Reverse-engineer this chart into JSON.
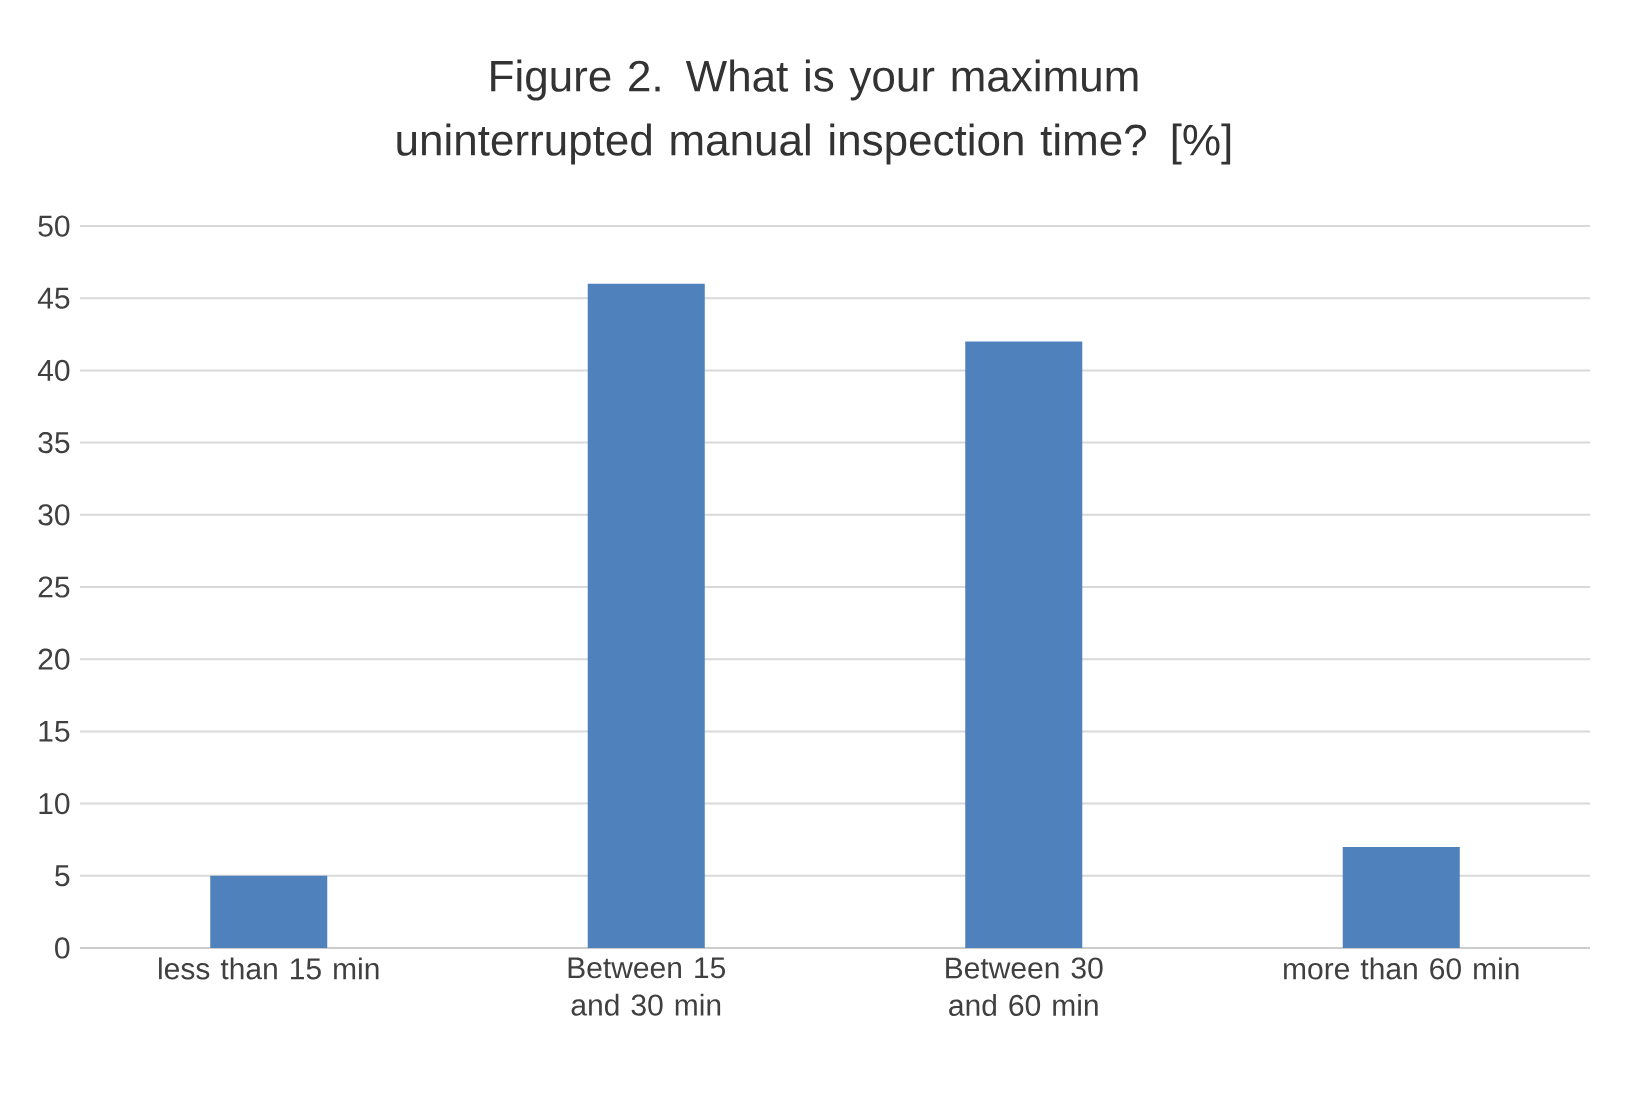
{
  "chart_data": {
    "type": "bar",
    "title": "Figure 2. What is your maximum uninterrupted manual inspection time? [%]",
    "categories": [
      "less than 15 min",
      "Between 15 and 30 min",
      "Between 30 and 60 min",
      "more than 60 min"
    ],
    "values": [
      5,
      46,
      42,
      7
    ],
    "color": "#4f81bd",
    "ylim": [
      0,
      50
    ],
    "yticks": [
      0,
      5,
      10,
      15,
      20,
      25,
      30,
      35,
      40,
      45,
      50
    ],
    "grid": "y"
  }
}
